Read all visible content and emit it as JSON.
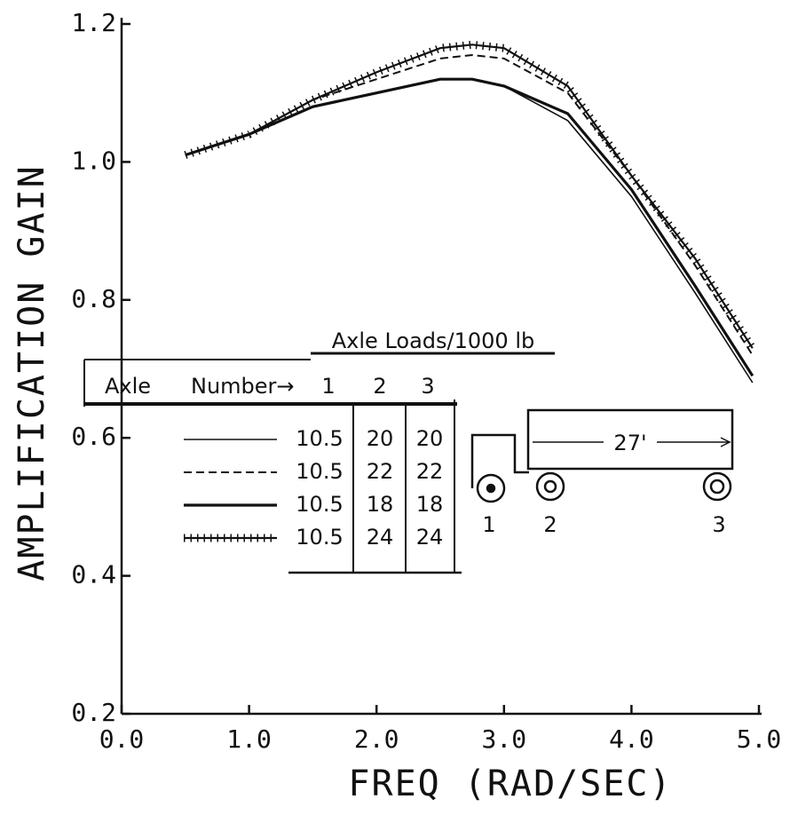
{
  "chart_data": {
    "type": "line",
    "x_label": "FREQ (RAD/SEC)",
    "y_label": "AMPLIFICATION GAIN",
    "x": [
      0.5,
      1.0,
      1.5,
      2.0,
      2.5,
      2.75,
      3.0,
      3.5,
      4.0,
      4.5,
      4.95
    ],
    "xlim": [
      0,
      5
    ],
    "ylim": [
      0.2,
      1.2
    ],
    "xticks": [
      {
        "value": 0,
        "label": "0.0"
      },
      {
        "value": 1,
        "label": "1.0"
      },
      {
        "value": 2,
        "label": "2.0"
      },
      {
        "value": 3,
        "label": "3.0"
      },
      {
        "value": 4,
        "label": "4.0"
      },
      {
        "value": 5,
        "label": "5.0"
      }
    ],
    "yticks": [
      0.2,
      0.4,
      0.6,
      0.8,
      {
        "value": 1,
        "label": "1.0"
      },
      1.2
    ],
    "series": [
      {
        "style": "thin",
        "color": "#111111",
        "loads": [
          "10.5",
          "20",
          "20"
        ],
        "values": [
          1.01,
          1.04,
          1.08,
          1.1,
          1.12,
          1.12,
          1.11,
          1.06,
          0.95,
          0.81,
          0.68
        ]
      },
      {
        "style": "dashed",
        "color": "#111111",
        "loads": [
          "10.5",
          "22",
          "22"
        ],
        "values": [
          1.01,
          1.04,
          1.09,
          1.12,
          1.15,
          1.155,
          1.15,
          1.1,
          0.98,
          0.85,
          0.72
        ]
      },
      {
        "style": "thick",
        "color": "#111111",
        "loads": [
          "10.5",
          "18",
          "18"
        ],
        "values": [
          1.01,
          1.04,
          1.08,
          1.1,
          1.12,
          1.12,
          1.11,
          1.07,
          0.96,
          0.82,
          0.69
        ]
      },
      {
        "style": "hatched",
        "color": "#111111",
        "loads": [
          "10.5",
          "24",
          "24"
        ],
        "values": [
          1.01,
          1.04,
          1.09,
          1.13,
          1.165,
          1.17,
          1.165,
          1.11,
          0.98,
          0.86,
          0.73
        ]
      }
    ]
  },
  "legend_table": {
    "title": "Axle Loads/1000 lb",
    "axle_label": "Axle",
    "number_label": "Number→",
    "axle_numbers": [
      "1",
      "2",
      "3"
    ]
  },
  "diagram": {
    "length": "27'",
    "axles": [
      "1",
      "2",
      "3"
    ]
  }
}
